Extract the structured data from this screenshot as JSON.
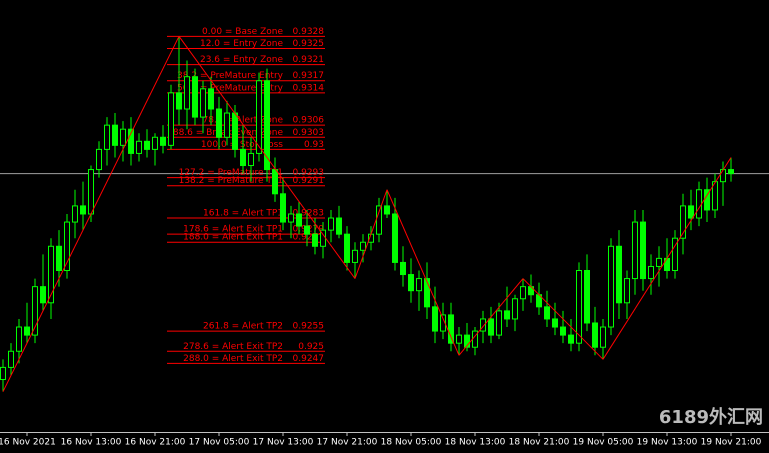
{
  "chart_data": {
    "type": "candlestick",
    "categories": [
      null,
      null,
      null,
      "16 Nov 2021",
      null,
      null,
      null,
      null,
      null,
      null,
      null,
      "16 Nov 13:00",
      null,
      null,
      null,
      null,
      null,
      null,
      null,
      "16 Nov 21:00",
      null,
      null,
      null,
      null,
      null,
      null,
      null,
      "17 Nov 05:00",
      null,
      null,
      null,
      null,
      null,
      null,
      null,
      "17 Nov 13:00",
      null,
      null,
      null,
      null,
      null,
      null,
      null,
      "17 Nov 21:00",
      null,
      null,
      null,
      null,
      null,
      null,
      null,
      "18 Nov 05:00",
      null,
      null,
      null,
      null,
      null,
      null,
      null,
      "18 Nov 13:00",
      null,
      null,
      null,
      null,
      null,
      null,
      null,
      "18 Nov 21:00",
      null,
      null,
      null,
      null,
      null,
      null,
      null,
      "19 Nov 05:00",
      null,
      null,
      null,
      null,
      null,
      null,
      null,
      "19 Nov 13:00",
      null,
      null,
      null,
      null,
      null,
      null,
      null,
      "19 Nov 21:00"
    ],
    "candles": [
      [
        0.9243,
        0.9248,
        0.924,
        0.9246
      ],
      [
        0.9246,
        0.9252,
        0.9244,
        0.925
      ],
      [
        0.925,
        0.9258,
        0.9247,
        0.9256
      ],
      [
        0.9256,
        0.9262,
        0.9252,
        0.9254
      ],
      [
        0.9254,
        0.9268,
        0.9252,
        0.9266
      ],
      [
        0.9266,
        0.9274,
        0.926,
        0.9262
      ],
      [
        0.9262,
        0.9278,
        0.9258,
        0.9276
      ],
      [
        0.9276,
        0.928,
        0.9266,
        0.927
      ],
      [
        0.927,
        0.9284,
        0.9268,
        0.9282
      ],
      [
        0.9282,
        0.929,
        0.9278,
        0.9286
      ],
      [
        0.9286,
        0.9292,
        0.928,
        0.9284
      ],
      [
        0.9284,
        0.9296,
        0.9282,
        0.9295
      ],
      [
        0.9295,
        0.9302,
        0.9293,
        0.93
      ],
      [
        0.93,
        0.9308,
        0.9296,
        0.9306
      ],
      [
        0.9306,
        0.9309,
        0.9298,
        0.9301
      ],
      [
        0.9301,
        0.9307,
        0.9297,
        0.9305
      ],
      [
        0.9305,
        0.9308,
        0.9296,
        0.9299
      ],
      [
        0.9299,
        0.9304,
        0.9297,
        0.9302
      ],
      [
        0.9302,
        0.9305,
        0.9298,
        0.93
      ],
      [
        0.93,
        0.9304,
        0.9296,
        0.9303
      ],
      [
        0.9303,
        0.9306,
        0.9299,
        0.9301
      ],
      [
        0.9301,
        0.9316,
        0.93,
        0.9314
      ],
      [
        0.9314,
        0.9328,
        0.9306,
        0.931
      ],
      [
        0.931,
        0.9322,
        0.9305,
        0.9318
      ],
      [
        0.9318,
        0.932,
        0.9306,
        0.9308
      ],
      [
        0.9308,
        0.9317,
        0.9304,
        0.9315
      ],
      [
        0.9315,
        0.9318,
        0.9306,
        0.931
      ],
      [
        0.931,
        0.9313,
        0.93,
        0.9303
      ],
      [
        0.9303,
        0.9312,
        0.9301,
        0.9309
      ],
      [
        0.9309,
        0.9311,
        0.9298,
        0.93
      ],
      [
        0.93,
        0.9306,
        0.9294,
        0.9296
      ],
      [
        0.9296,
        0.9303,
        0.9292,
        0.9299
      ],
      [
        0.9299,
        0.9319,
        0.9297,
        0.9317
      ],
      [
        0.9317,
        0.932,
        0.9292,
        0.9295
      ],
      [
        0.9295,
        0.9298,
        0.9287,
        0.9289
      ],
      [
        0.9289,
        0.9293,
        0.928,
        0.9282
      ],
      [
        0.9282,
        0.9286,
        0.9278,
        0.9284
      ],
      [
        0.9284,
        0.9287,
        0.9279,
        0.9281
      ],
      [
        0.9281,
        0.9285,
        0.9276,
        0.9279
      ],
      [
        0.9279,
        0.9283,
        0.9274,
        0.9276
      ],
      [
        0.9276,
        0.9282,
        0.9273,
        0.928
      ],
      [
        0.928,
        0.9285,
        0.9277,
        0.9283
      ],
      [
        0.9283,
        0.9286,
        0.9278,
        0.9279
      ],
      [
        0.9279,
        0.9281,
        0.927,
        0.9272
      ],
      [
        0.9272,
        0.9277,
        0.9268,
        0.9275
      ],
      [
        0.9275,
        0.9279,
        0.9272,
        0.9277
      ],
      [
        0.9277,
        0.9281,
        0.9275,
        0.9279
      ],
      [
        0.9279,
        0.9288,
        0.9277,
        0.9286
      ],
      [
        0.9286,
        0.929,
        0.9283,
        0.9284
      ],
      [
        0.9284,
        0.9288,
        0.927,
        0.9272
      ],
      [
        0.9272,
        0.9276,
        0.9266,
        0.9269
      ],
      [
        0.9269,
        0.9273,
        0.9262,
        0.9265
      ],
      [
        0.9265,
        0.927,
        0.926,
        0.9268
      ],
      [
        0.9268,
        0.9272,
        0.9258,
        0.9261
      ],
      [
        0.9261,
        0.9266,
        0.9252,
        0.9255
      ],
      [
        0.9255,
        0.9262,
        0.9253,
        0.9259
      ],
      [
        0.9259,
        0.9262,
        0.925,
        0.9252
      ],
      [
        0.9252,
        0.9256,
        0.9249,
        0.9254
      ],
      [
        0.9254,
        0.9257,
        0.925,
        0.9251
      ],
      [
        0.9251,
        0.9256,
        0.9249,
        0.9255
      ],
      [
        0.9255,
        0.926,
        0.9252,
        0.9258
      ],
      [
        0.9258,
        0.9261,
        0.9252,
        0.9254
      ],
      [
        0.9254,
        0.9262,
        0.9253,
        0.926
      ],
      [
        0.926,
        0.9266,
        0.9256,
        0.9258
      ],
      [
        0.9258,
        0.9264,
        0.9255,
        0.9263
      ],
      [
        0.9263,
        0.9268,
        0.926,
        0.9266
      ],
      [
        0.9266,
        0.9269,
        0.9262,
        0.9264
      ],
      [
        0.9264,
        0.9267,
        0.9259,
        0.9261
      ],
      [
        0.9261,
        0.9265,
        0.9256,
        0.9258
      ],
      [
        0.9258,
        0.9262,
        0.9254,
        0.9256
      ],
      [
        0.9256,
        0.926,
        0.9252,
        0.9254
      ],
      [
        0.9254,
        0.9258,
        0.925,
        0.9252
      ],
      [
        0.9252,
        0.9272,
        0.925,
        0.927
      ],
      [
        0.927,
        0.9274,
        0.9255,
        0.9257
      ],
      [
        0.9257,
        0.9261,
        0.9249,
        0.9251
      ],
      [
        0.9251,
        0.9258,
        0.9248,
        0.9256
      ],
      [
        0.9256,
        0.9278,
        0.9254,
        0.9276
      ],
      [
        0.9276,
        0.928,
        0.9258,
        0.9262
      ],
      [
        0.9262,
        0.927,
        0.9258,
        0.9268
      ],
      [
        0.9268,
        0.9285,
        0.9264,
        0.9282
      ],
      [
        0.9282,
        0.9285,
        0.9265,
        0.9268
      ],
      [
        0.9268,
        0.9274,
        0.9264,
        0.9271
      ],
      [
        0.9271,
        0.9276,
        0.9266,
        0.9273
      ],
      [
        0.9273,
        0.9278,
        0.9268,
        0.927
      ],
      [
        0.927,
        0.928,
        0.9268,
        0.9278
      ],
      [
        0.9278,
        0.9289,
        0.9274,
        0.9286
      ],
      [
        0.9286,
        0.929,
        0.928,
        0.9283
      ],
      [
        0.9283,
        0.9292,
        0.9281,
        0.929
      ],
      [
        0.929,
        0.9293,
        0.9282,
        0.9285
      ],
      [
        0.9285,
        0.9294,
        0.9283,
        0.9292
      ],
      [
        0.9292,
        0.9297,
        0.9286,
        0.9295
      ],
      [
        0.9295,
        0.9298,
        0.9292,
        0.9294
      ]
    ],
    "up_color": "#00ff00",
    "down_color": "#00ff00",
    "zigzag": {
      "color": "#ff0000",
      "values": [
        0.924,
        null,
        null,
        null,
        null,
        null,
        null,
        null,
        null,
        null,
        null,
        null,
        null,
        null,
        null,
        null,
        null,
        null,
        null,
        null,
        null,
        null,
        0.9328,
        null,
        null,
        null,
        null,
        null,
        null,
        null,
        null,
        null,
        null,
        null,
        null,
        null,
        null,
        null,
        null,
        null,
        null,
        null,
        null,
        null,
        0.9268,
        null,
        null,
        null,
        0.929,
        null,
        null,
        null,
        null,
        null,
        null,
        null,
        null,
        0.9249,
        null,
        null,
        null,
        null,
        null,
        null,
        null,
        0.9268,
        null,
        null,
        null,
        null,
        null,
        null,
        null,
        null,
        null,
        0.9248,
        null,
        null,
        null,
        null,
        null,
        null,
        null,
        null,
        null,
        null,
        null,
        null,
        null,
        null,
        null,
        0.9298
      ]
    },
    "bid_line": 0.9294,
    "ylim": [
      0.923,
      0.9337
    ],
    "fib_color": "#ff0000",
    "fib_levels": [
      {
        "label": "0.00 = Base Zone",
        "value": 0.9328
      },
      {
        "label": "12.0 = Entry Zone",
        "value": 0.9325
      },
      {
        "label": "23.6 = Entry Zone",
        "value": 0.9321
      },
      {
        "label": "38.2 = PreMature Entry",
        "value": 0.9317
      },
      {
        "label": "50.0 = PreMature Entry",
        "value": 0.9314
      },
      {
        "label": "78.6 = Alert Zone",
        "value": 0.9306
      },
      {
        "label": "88.6 = Break Even Zone",
        "value": 0.9303
      },
      {
        "label": "100.0 = Stop Loss",
        "value": 0.93
      },
      {
        "label": "127.2 = PreMature TP1",
        "value": 0.9293
      },
      {
        "label": "138.2 = PreMature TP1",
        "value": 0.9291
      },
      {
        "label": "161.8 = Alert TP1",
        "value": 0.9283
      },
      {
        "label": "178.6 = Alert Exit TP1",
        "value": 0.9279
      },
      {
        "label": "188.0 = Alert Exit TP1",
        "value": 0.9277
      },
      {
        "label": "261.8 = Alert TP2",
        "value": 0.9255
      },
      {
        "label": "278.6 = Alert Exit TP2",
        "value": 0.925
      },
      {
        "label": "288.0 = Alert Exit TP2",
        "value": 0.9247
      }
    ],
    "watermark": "6189外汇网"
  }
}
